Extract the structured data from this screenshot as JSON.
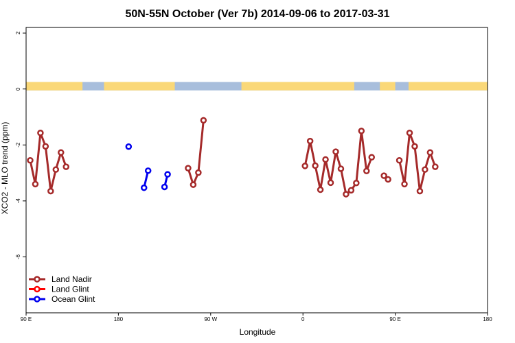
{
  "chart_data": {
    "type": "line",
    "title": "50N-55N October (Ver 7b)   2014-09-06 to 2017-03-31",
    "xlabel": "Longitude",
    "ylabel": "XCO2 - MLO trend (ppm)",
    "x_ticks": [
      {
        "value": 0,
        "label": "90 E"
      },
      {
        "value": 90,
        "label": "180"
      },
      {
        "value": 180,
        "label": "90 W"
      },
      {
        "value": 270,
        "label": "0"
      },
      {
        "value": 360,
        "label": "90 E"
      },
      {
        "value": 450,
        "label": "180"
      }
    ],
    "y_ticks": [
      {
        "value": 2,
        "label": "2"
      },
      {
        "value": 0,
        "label": "0"
      },
      {
        "value": -2,
        "label": "-2"
      },
      {
        "value": -4,
        "label": "-4"
      },
      {
        "value": -6,
        "label": "-6"
      }
    ],
    "xlim": [
      0,
      450
    ],
    "ylim": [
      -8,
      2.2
    ],
    "land_band": {
      "y_range": [
        -0.05,
        0.25
      ],
      "land_color": "#FAD878",
      "ocean_color": "#A8BEDC",
      "land_segments": [
        [
          0,
          55
        ],
        [
          76,
          145
        ],
        [
          210,
          320
        ],
        [
          345,
          360
        ],
        [
          373,
          450
        ]
      ]
    },
    "legend_position": "bottom-left",
    "series": [
      {
        "name": "Land Nadir",
        "color": "#A52A2A",
        "segments": [
          [
            [
              4,
              -2.55
            ],
            [
              9,
              -3.4
            ],
            [
              14,
              -1.57
            ],
            [
              19,
              -2.05
            ],
            [
              24,
              -3.65
            ],
            [
              29,
              -2.88
            ],
            [
              34,
              -2.27
            ],
            [
              39,
              -2.78
            ]
          ],
          [
            [
              158,
              -2.83
            ],
            [
              163,
              -3.42
            ],
            [
              168,
              -2.99
            ],
            [
              173,
              -1.12
            ]
          ],
          [
            [
              272,
              -2.75
            ],
            [
              277,
              -1.86
            ],
            [
              282,
              -2.74
            ],
            [
              287,
              -3.6
            ],
            [
              292,
              -2.52
            ],
            [
              297,
              -3.35
            ],
            [
              302,
              -2.24
            ],
            [
              307,
              -2.85
            ],
            [
              312,
              -3.76
            ],
            [
              317,
              -3.62
            ],
            [
              322,
              -3.36
            ],
            [
              327,
              -1.5
            ],
            [
              332,
              -2.93
            ],
            [
              337,
              -2.44
            ]
          ],
          [
            [
              349,
              -3.1
            ],
            [
              353,
              -3.23
            ]
          ],
          [
            [
              364,
              -2.55
            ],
            [
              369,
              -3.4
            ],
            [
              374,
              -1.57
            ],
            [
              379,
              -2.05
            ],
            [
              384,
              -3.65
            ],
            [
              389,
              -2.88
            ],
            [
              394,
              -2.27
            ],
            [
              399,
              -2.78
            ]
          ]
        ]
      },
      {
        "name": "Land Glint",
        "color": "#FF0000",
        "segments": []
      },
      {
        "name": "Ocean Glint",
        "color": "#0000EE",
        "segments": [
          [
            [
              100,
              -2.06
            ]
          ],
          [
            [
              115,
              -3.53
            ],
            [
              119,
              -2.92
            ]
          ],
          [
            [
              135,
              -3.5
            ],
            [
              138,
              -3.05
            ]
          ]
        ]
      }
    ]
  }
}
